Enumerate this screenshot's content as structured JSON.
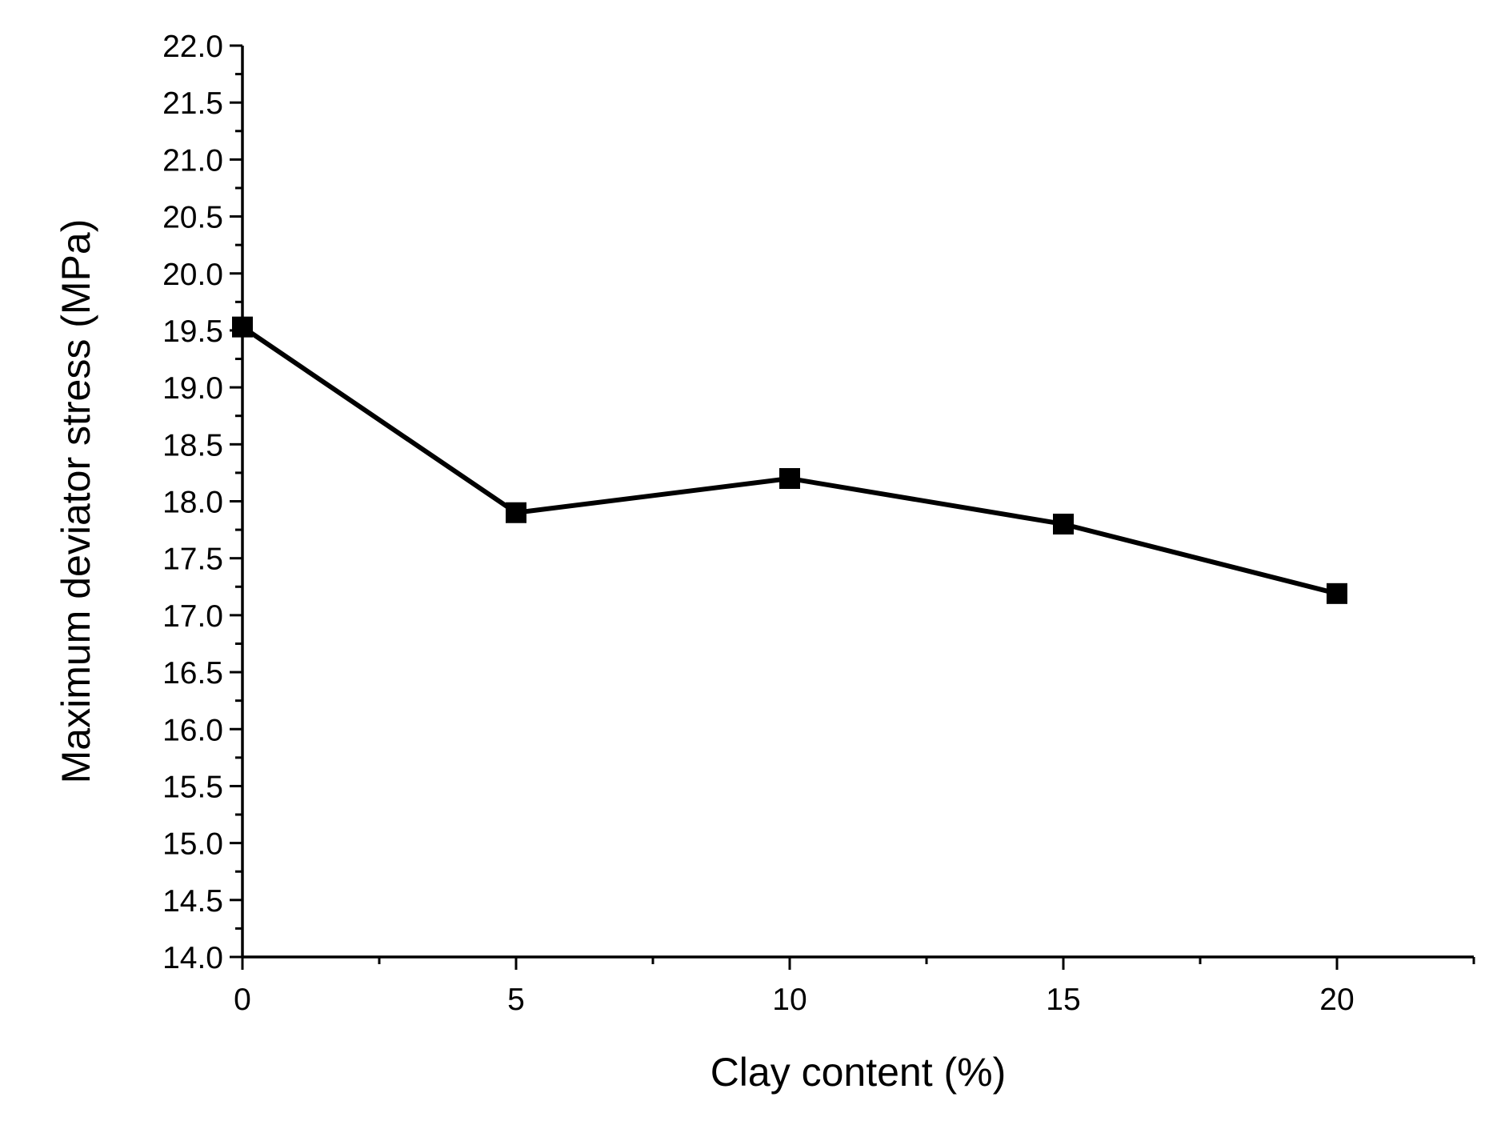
{
  "chart_data": {
    "type": "line",
    "title": "",
    "xlabel": "Clay content (%)",
    "ylabel": "Maximum deviator stress (MPa)",
    "xlim": [
      0,
      22.5
    ],
    "ylim": [
      14.0,
      22.0
    ],
    "xticks": [
      0,
      5,
      10,
      15,
      20
    ],
    "xtick_labels": [
      "0",
      "5",
      "10",
      "15",
      "20"
    ],
    "yticks": [
      14.0,
      14.5,
      15.0,
      15.5,
      16.0,
      16.5,
      17.0,
      17.5,
      18.0,
      18.5,
      19.0,
      19.5,
      20.0,
      20.5,
      21.0,
      21.5,
      22.0
    ],
    "ytick_labels": [
      "14.0",
      "14.5",
      "15.0",
      "15.5",
      "16.0",
      "16.5",
      "17.0",
      "17.5",
      "18.0",
      "18.5",
      "19.0",
      "19.5",
      "20.0",
      "20.5",
      "21.0",
      "21.5",
      "22.0"
    ],
    "x_minor_step": 2.5,
    "y_minor_step": 0.25,
    "grid": false,
    "series": [
      {
        "x": [
          0,
          5,
          10,
          15,
          20
        ],
        "y": [
          19.53,
          17.9,
          18.2,
          17.8,
          17.19
        ],
        "marker": "square",
        "color": "#000000"
      }
    ]
  }
}
